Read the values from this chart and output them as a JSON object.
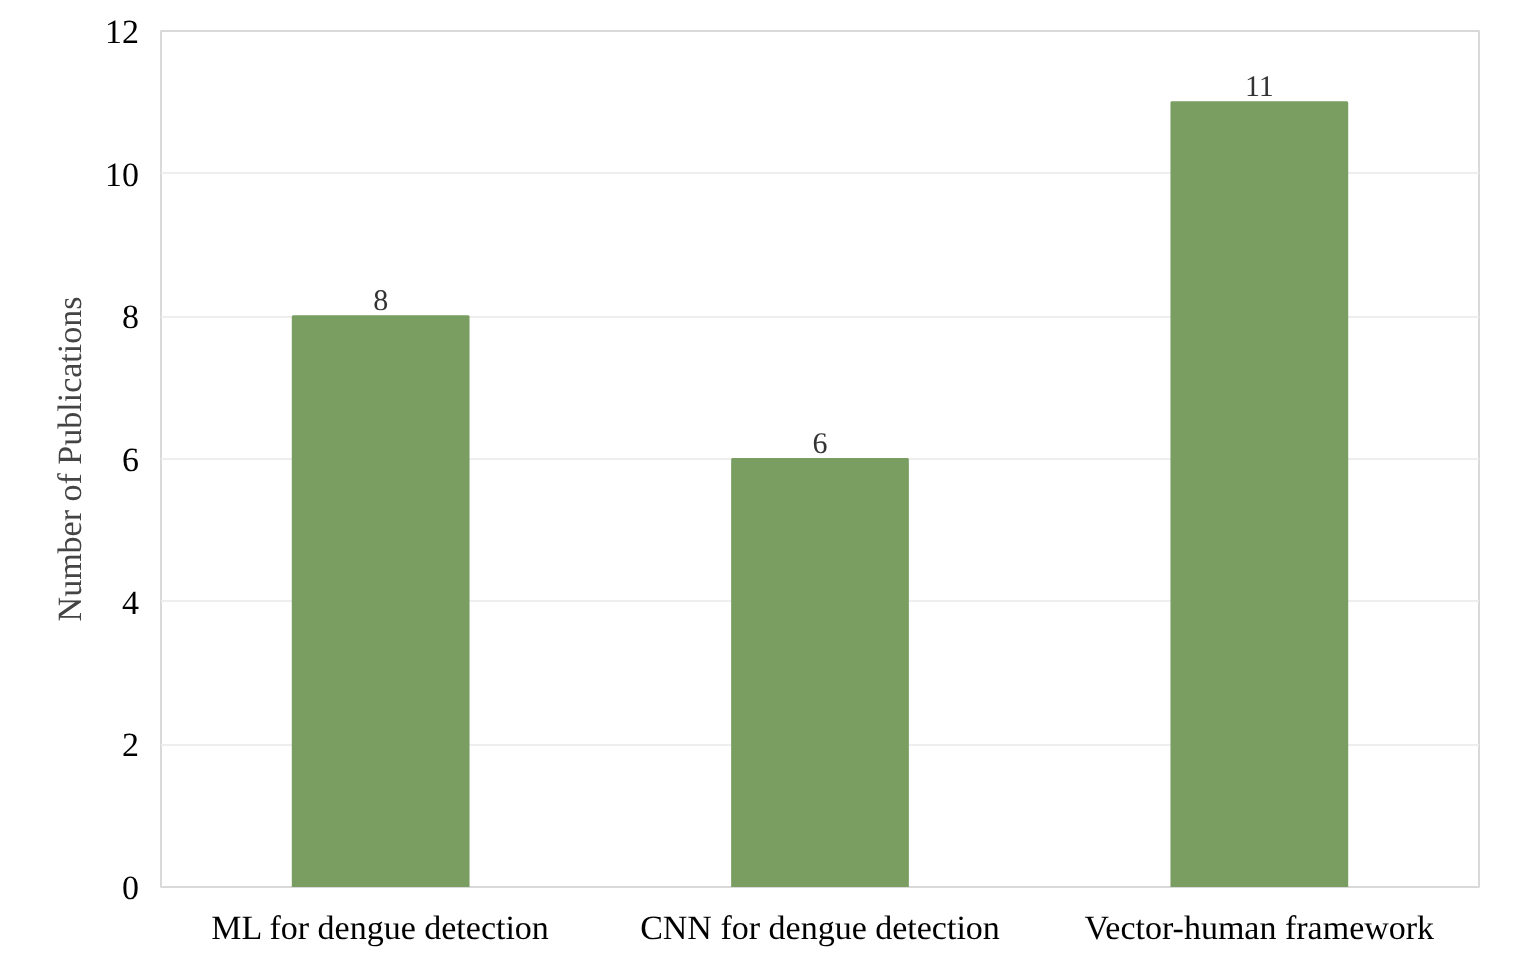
{
  "chart_data": {
    "type": "bar",
    "categories": [
      "ML for dengue detection",
      "CNN for dengue detection",
      "Vector-human framework"
    ],
    "values": [
      8,
      6,
      11
    ],
    "color": "#7a9e62",
    "ylabel": "Number of Publications",
    "ylim": [
      0,
      12
    ],
    "yticks": [
      0,
      2,
      4,
      6,
      8,
      10,
      12
    ],
    "grid": "y",
    "data_labels": true
  }
}
